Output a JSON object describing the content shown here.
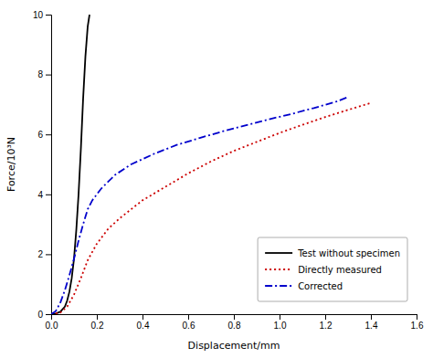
{
  "chart_data": {
    "type": "line",
    "xlabel": "Displacement/mm",
    "ylabel": "Force/10³N",
    "xlim": [
      0,
      1.6
    ],
    "ylim": [
      0,
      10
    ],
    "xticks": [
      {
        "value": 0,
        "label": "0.0"
      },
      0.2,
      0.4,
      0.6,
      0.8,
      {
        "value": 1.0,
        "label": "1.0"
      },
      1.2,
      1.4,
      1.6
    ],
    "yticks": [
      0,
      2,
      4,
      6,
      8,
      10
    ],
    "legend": "lower right",
    "series": [
      {
        "name": "Test without specimen",
        "color": "#000000",
        "line_style": "solid",
        "x": [
          0.0,
          0.02,
          0.04,
          0.06,
          0.07,
          0.08,
          0.09,
          0.1,
          0.11,
          0.12,
          0.13,
          0.14,
          0.15,
          0.16,
          0.168
        ],
        "values": [
          0.0,
          0.02,
          0.08,
          0.25,
          0.45,
          0.75,
          1.2,
          1.85,
          2.8,
          4.0,
          5.5,
          7.2,
          8.6,
          9.6,
          10.0
        ]
      },
      {
        "name": "Directly measured",
        "color": "#cc0000",
        "line_style": "dotted",
        "x": [
          0.0,
          0.04,
          0.07,
          0.1,
          0.13,
          0.16,
          0.2,
          0.25,
          0.3,
          0.4,
          0.5,
          0.6,
          0.7,
          0.8,
          0.9,
          1.0,
          1.1,
          1.2,
          1.3,
          1.4
        ],
        "values": [
          0.0,
          0.05,
          0.25,
          0.65,
          1.2,
          1.8,
          2.35,
          2.85,
          3.2,
          3.8,
          4.25,
          4.7,
          5.1,
          5.45,
          5.75,
          6.05,
          6.32,
          6.58,
          6.82,
          7.05
        ]
      },
      {
        "name": "Corrected",
        "color": "#0000cc",
        "line_style": "dashdot",
        "x": [
          0.0,
          0.02,
          0.04,
          0.06,
          0.08,
          0.1,
          0.12,
          0.14,
          0.16,
          0.18,
          0.22,
          0.28,
          0.35,
          0.45,
          0.55,
          0.65,
          0.75,
          0.85,
          0.95,
          1.05,
          1.15,
          1.25,
          1.3
        ],
        "values": [
          0.0,
          0.1,
          0.38,
          0.8,
          1.3,
          1.85,
          2.45,
          3.0,
          3.5,
          3.8,
          4.2,
          4.65,
          5.0,
          5.35,
          5.65,
          5.88,
          6.1,
          6.3,
          6.5,
          6.68,
          6.88,
          7.1,
          7.25
        ]
      }
    ]
  }
}
